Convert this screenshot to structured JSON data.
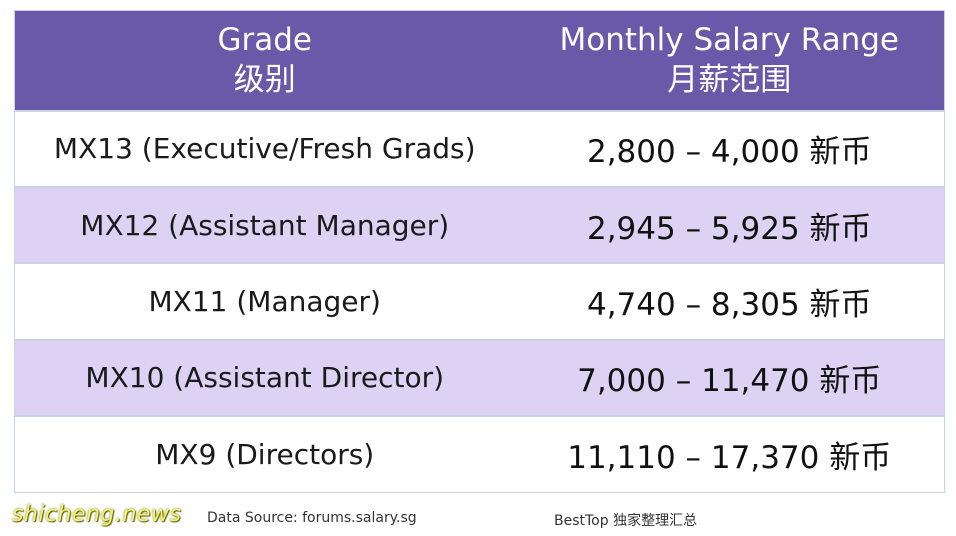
{
  "table": {
    "headers": {
      "grade_en": "Grade",
      "grade_zh": "级别",
      "range_en": "Monthly Salary Range",
      "range_zh": "月薪范围"
    },
    "rows": [
      {
        "grade": "MX13 (Executive/Fresh Grads)",
        "range": "2,800 – 4,000 新币"
      },
      {
        "grade": "MX12 (Assistant Manager)",
        "range": "2,945 – 5,925 新币"
      },
      {
        "grade": "MX11 (Manager)",
        "range": "4,740 – 8,305 新币"
      },
      {
        "grade": "MX10 (Assistant Director)",
        "range": "7,000 – 11,470 新币"
      },
      {
        "grade": "MX9 (Directors)",
        "range": "11,110 – 17,370 新币"
      }
    ]
  },
  "footer": {
    "watermark": "shicheng.news",
    "source": "Data Source: forums.salary.sg",
    "credit": "BestTop 独家整理汇总"
  },
  "colors": {
    "header_bg": "#6a59a9",
    "row_alt_bg": "#ddd1f4",
    "border": "#c9d3e6"
  }
}
